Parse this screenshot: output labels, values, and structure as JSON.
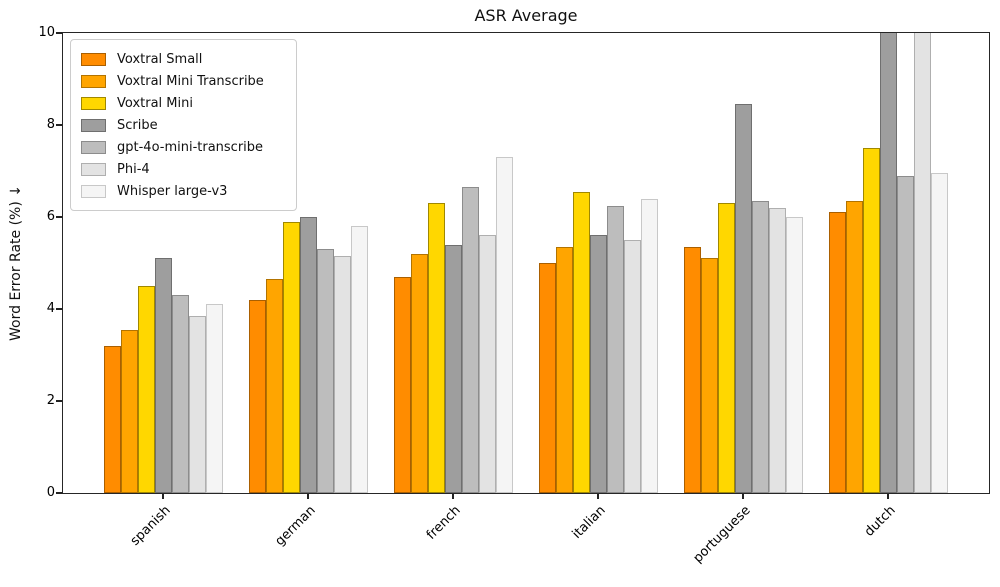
{
  "chart_title": "ASR Average",
  "chart_data": {
    "type": "bar",
    "title": "ASR Average",
    "xlabel": "",
    "ylabel": "Word Error Rate (%) ↓",
    "ylim": [
      0,
      10
    ],
    "yticks": [
      0,
      2,
      4,
      6,
      8,
      10
    ],
    "grid": false,
    "legend_position": "upper left",
    "categories": [
      "spanish",
      "german",
      "french",
      "italian",
      "portuguese",
      "dutch"
    ],
    "series": [
      {
        "name": "Voxtral Small",
        "color": "#FF8C00",
        "edge_color": "#AA5F00",
        "values": [
          3.2,
          4.2,
          4.7,
          5.0,
          5.35,
          6.1
        ]
      },
      {
        "name": "Voxtral Mini Transcribe",
        "color": "#FFA500",
        "edge_color": "#B27300",
        "values": [
          3.55,
          4.65,
          5.2,
          5.35,
          5.1,
          6.35
        ]
      },
      {
        "name": "Voxtral Mini",
        "color": "#FFD700",
        "edge_color": "#A08800",
        "values": [
          4.5,
          5.9,
          6.3,
          6.55,
          6.3,
          7.5
        ]
      },
      {
        "name": "Scribe",
        "color": "#9E9E9E",
        "edge_color": "#6F6F6F",
        "values": [
          5.1,
          6.0,
          5.4,
          5.6,
          8.45,
          10.0
        ]
      },
      {
        "name": "gpt-4o-mini-transcribe",
        "color": "#BDBDBD",
        "edge_color": "#8C8C8C",
        "values": [
          4.3,
          5.3,
          6.65,
          6.25,
          6.35,
          6.9
        ]
      },
      {
        "name": "Phi-4",
        "color": "#E3E3E3",
        "edge_color": "#AFAFAF",
        "values": [
          3.85,
          5.15,
          5.6,
          5.5,
          6.2,
          10.0
        ]
      },
      {
        "name": "Whisper large-v3",
        "color": "#F5F5F5",
        "edge_color": "#C8C8C8",
        "values": [
          4.1,
          5.8,
          7.3,
          6.4,
          6.0,
          6.95
        ]
      }
    ],
    "clipped_above_ylim": [
      {
        "category": "dutch",
        "series": "Scribe"
      },
      {
        "category": "dutch",
        "series": "Phi-4"
      }
    ]
  }
}
